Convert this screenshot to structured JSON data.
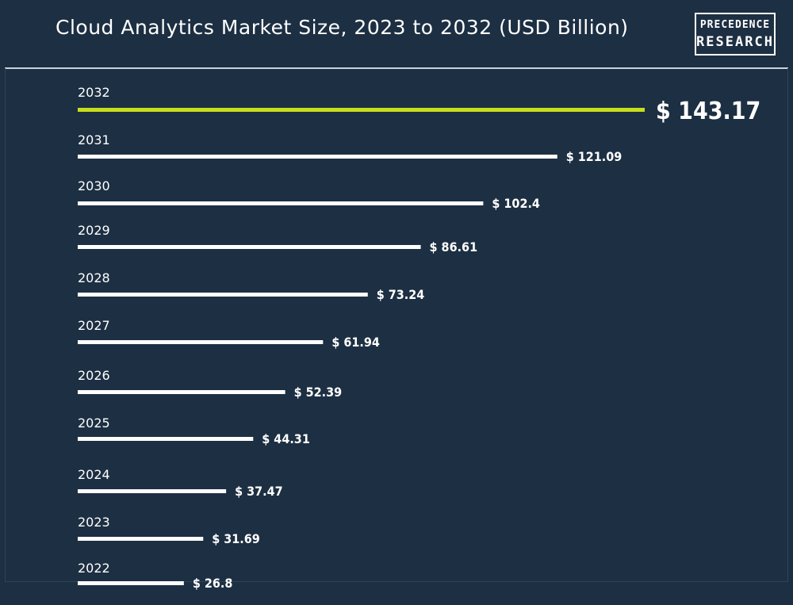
{
  "title": "Cloud Analytics Market Size, 2023 to 2032 (USD Billion)",
  "logo": {
    "line1": "PRECEDENCE",
    "line2": "RESEARCH"
  },
  "colors": {
    "background": "#1d2f42",
    "bar": "#ffffff",
    "highlight_bar": "#c7de1d",
    "text": "#ffffff"
  },
  "chart_data": {
    "type": "bar",
    "orientation": "horizontal",
    "title": "Cloud Analytics Market Size, 2023 to 2032 (USD Billion)",
    "categories": [
      "2032",
      "2031",
      "2030",
      "2029",
      "2028",
      "2027",
      "2026",
      "2025",
      "2024",
      "2023",
      "2022"
    ],
    "values": [
      143.17,
      121.09,
      102.4,
      86.61,
      73.24,
      61.94,
      52.39,
      44.31,
      37.47,
      31.69,
      26.8
    ],
    "value_labels": [
      "$ 143.17",
      "$ 121.09",
      "$ 102.4",
      "$ 86.61",
      "$ 73.24",
      "$ 61.94",
      "$ 52.39",
      "$ 44.31",
      "$ 37.47",
      "$ 31.69",
      "$ 26.8"
    ],
    "highlight": "2032",
    "xlabel": "",
    "ylabel": "",
    "grid": false,
    "legend": "none"
  }
}
